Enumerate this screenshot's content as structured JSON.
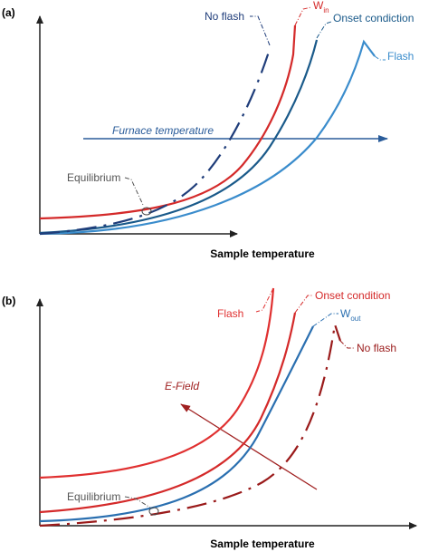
{
  "panel_a": {
    "tag": "(a)",
    "labels": {
      "no_flash": "No flash",
      "w_in": {
        "main": "W",
        "sub": "in"
      },
      "onset": "Onset condiction",
      "flash": "Flash",
      "furnace": "Furnace temperature",
      "equilibrium": "Equilibrium"
    },
    "x_axis": "Sample temperature"
  },
  "panel_b": {
    "tag": "(b)",
    "labels": {
      "flash": "Flash",
      "onset": "Onset condition",
      "w_out": {
        "main": "W",
        "sub": "out"
      },
      "no_flash": "No flash",
      "e_field": "E-Field",
      "equilibrium": "Equilibrium"
    },
    "x_axis": "Sample temperature"
  }
}
